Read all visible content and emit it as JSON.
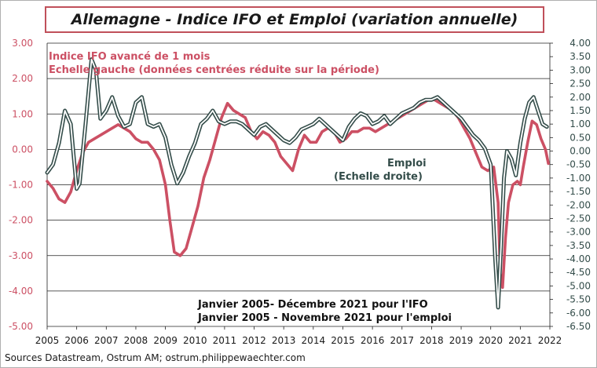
{
  "title": "Allemagne - Indice IFO et Emploi (variation annuelle)",
  "source": "Sources Datastream, Ostrum AM; ostrum.philippewaechter.com",
  "colors": {
    "ifo": "#cc5064",
    "emploi": "#344d4a",
    "title_border": "#c0505a"
  },
  "chart_data": {
    "type": "line",
    "title": "Allemagne - Indice IFO et Emploi (variation annuelle)",
    "x_ticks": [
      "2005",
      "2006",
      "2007",
      "2008",
      "2009",
      "2010",
      "2011",
      "2012",
      "2013",
      "2014",
      "2015",
      "2016",
      "2017",
      "2018",
      "2019",
      "2020",
      "2021",
      "2022"
    ],
    "y_left": {
      "ticks": [
        "3.00",
        "2.00",
        "1.00",
        "0.00",
        "-1.00",
        "-2.00",
        "-3.00",
        "-4.00",
        "-5.00"
      ],
      "ylim": [
        -5,
        3
      ]
    },
    "y_right": {
      "ticks": [
        "4.00",
        "3.50",
        "3.00",
        "2.50",
        "2.00",
        "1.50",
        "1.00",
        "0.50",
        "0.00",
        "-0.50",
        "-1.00",
        "-1.50",
        "-2.00",
        "-2.50",
        "-3.00",
        "-3.50",
        "-4.00",
        "-4.50",
        "-5.00",
        "-5.50",
        "-6.00",
        "-6.50"
      ],
      "ylim": [
        -6.5,
        4
      ]
    },
    "grid": "horizontal",
    "annotations": {
      "ifo_label_1": "Indice IFO avancé de 1 mois",
      "ifo_label_2": "Echelle gauche (données centrées réduite sur la période)",
      "emploi_label_1": "Emploi",
      "emploi_label_2": "(Echelle droite)",
      "period_1": "Janvier 2005- Décembre 2021 pour l'IFO",
      "period_2": "Janvier 2005 - Novembre 2021 pour l'emploi"
    },
    "series": [
      {
        "name": "Indice IFO avancé de 1 mois",
        "axis": "left",
        "x": [
          2005.0,
          2005.2,
          2005.4,
          2005.6,
          2005.8,
          2006.0,
          2006.2,
          2006.4,
          2006.6,
          2006.8,
          2007.0,
          2007.2,
          2007.4,
          2007.6,
          2007.8,
          2008.0,
          2008.2,
          2008.4,
          2008.6,
          2008.8,
          2009.0,
          2009.15,
          2009.3,
          2009.5,
          2009.7,
          2009.9,
          2010.1,
          2010.3,
          2010.5,
          2010.7,
          2010.9,
          2011.1,
          2011.3,
          2011.5,
          2011.7,
          2011.9,
          2012.1,
          2012.3,
          2012.5,
          2012.7,
          2012.9,
          2013.1,
          2013.3,
          2013.5,
          2013.7,
          2013.9,
          2014.1,
          2014.3,
          2014.5,
          2014.7,
          2014.9,
          2015.1,
          2015.3,
          2015.5,
          2015.7,
          2015.9,
          2016.1,
          2016.3,
          2016.5,
          2016.7,
          2016.9,
          2017.1,
          2017.3,
          2017.5,
          2017.7,
          2017.9,
          2018.1,
          2018.3,
          2018.5,
          2018.7,
          2018.9,
          2019.1,
          2019.3,
          2019.5,
          2019.7,
          2019.9,
          2020.1,
          2020.25,
          2020.32,
          2020.4,
          2020.5,
          2020.6,
          2020.75,
          2020.9,
          2021.0,
          2021.1,
          2021.25,
          2021.4,
          2021.55,
          2021.7,
          2021.85,
          2021.95
        ],
        "values": [
          -0.9,
          -1.1,
          -1.4,
          -1.5,
          -1.2,
          -0.6,
          -0.1,
          0.2,
          0.3,
          0.4,
          0.5,
          0.6,
          0.7,
          0.6,
          0.5,
          0.3,
          0.2,
          0.2,
          0.0,
          -0.3,
          -1.0,
          -2.0,
          -2.9,
          -3.0,
          -2.8,
          -2.2,
          -1.6,
          -0.8,
          -0.3,
          0.3,
          0.9,
          1.3,
          1.1,
          1.0,
          0.9,
          0.5,
          0.3,
          0.5,
          0.4,
          0.2,
          -0.2,
          -0.4,
          -0.6,
          0.0,
          0.4,
          0.2,
          0.2,
          0.5,
          0.6,
          0.5,
          0.2,
          0.3,
          0.5,
          0.5,
          0.6,
          0.6,
          0.5,
          0.6,
          0.7,
          0.8,
          0.9,
          1.0,
          1.1,
          1.2,
          1.3,
          1.4,
          1.4,
          1.3,
          1.2,
          1.1,
          0.9,
          0.6,
          0.3,
          -0.1,
          -0.5,
          -0.6,
          -0.5,
          -1.5,
          -3.5,
          -3.9,
          -2.5,
          -1.5,
          -1.0,
          -0.9,
          -1.0,
          -0.5,
          0.2,
          0.8,
          0.7,
          0.3,
          0.0,
          -0.4
        ]
      },
      {
        "name": "Emploi (Echelle droite)",
        "axis": "right",
        "x": [
          2005.0,
          2005.2,
          2005.4,
          2005.6,
          2005.8,
          2006.0,
          2006.1,
          2006.3,
          2006.5,
          2006.65,
          2006.8,
          2007.0,
          2007.2,
          2007.4,
          2007.6,
          2007.8,
          2008.0,
          2008.2,
          2008.4,
          2008.6,
          2008.8,
          2009.0,
          2009.2,
          2009.4,
          2009.6,
          2009.8,
          2010.0,
          2010.2,
          2010.4,
          2010.6,
          2010.8,
          2011.0,
          2011.2,
          2011.4,
          2011.6,
          2011.8,
          2012.0,
          2012.2,
          2012.4,
          2012.6,
          2012.8,
          2013.0,
          2013.2,
          2013.4,
          2013.6,
          2013.8,
          2014.0,
          2014.2,
          2014.4,
          2014.6,
          2014.8,
          2015.0,
          2015.2,
          2015.4,
          2015.6,
          2015.8,
          2016.0,
          2016.2,
          2016.4,
          2016.6,
          2016.8,
          2017.0,
          2017.2,
          2017.4,
          2017.6,
          2017.8,
          2018.0,
          2018.2,
          2018.4,
          2018.6,
          2018.8,
          2019.0,
          2019.2,
          2019.4,
          2019.6,
          2019.8,
          2020.0,
          2020.15,
          2020.25,
          2020.35,
          2020.45,
          2020.55,
          2020.7,
          2020.85,
          2021.0,
          2021.15,
          2021.3,
          2021.45,
          2021.6,
          2021.75,
          2021.9
        ],
        "values": [
          -0.8,
          -0.5,
          0.3,
          1.5,
          1.0,
          -1.4,
          -1.2,
          1.0,
          3.4,
          3.0,
          1.2,
          1.5,
          2.0,
          1.3,
          0.9,
          1.0,
          1.8,
          2.0,
          1.0,
          0.9,
          1.0,
          0.5,
          -0.5,
          -1.2,
          -0.8,
          -0.2,
          0.3,
          1.0,
          1.2,
          1.5,
          1.1,
          1.0,
          1.1,
          1.1,
          1.0,
          0.8,
          0.6,
          0.9,
          1.0,
          0.8,
          0.6,
          0.4,
          0.3,
          0.5,
          0.8,
          0.9,
          1.0,
          1.2,
          1.0,
          0.8,
          0.6,
          0.4,
          0.9,
          1.2,
          1.4,
          1.3,
          1.0,
          1.1,
          1.3,
          1.0,
          1.2,
          1.4,
          1.5,
          1.6,
          1.8,
          1.9,
          1.9,
          2.0,
          1.8,
          1.6,
          1.4,
          1.2,
          0.9,
          0.6,
          0.4,
          0.1,
          -0.5,
          -4.0,
          -5.8,
          -3.5,
          -1.0,
          0.0,
          -0.3,
          -0.9,
          0.3,
          1.2,
          1.8,
          2.0,
          1.5,
          1.0,
          0.9
        ]
      }
    ]
  }
}
